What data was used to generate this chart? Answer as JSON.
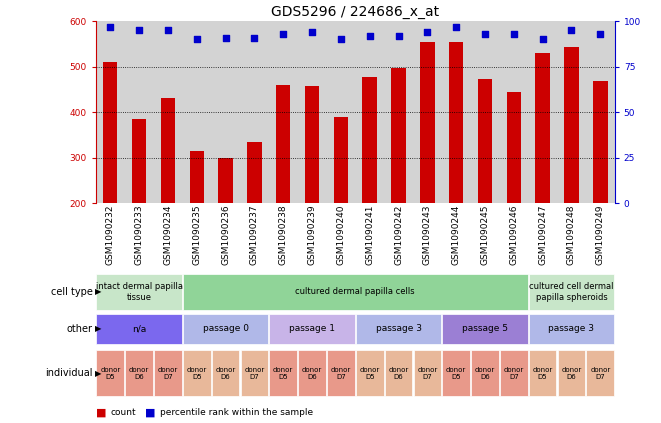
{
  "title": "GDS5296 / 224686_x_at",
  "samples": [
    "GSM1090232",
    "GSM1090233",
    "GSM1090234",
    "GSM1090235",
    "GSM1090236",
    "GSM1090237",
    "GSM1090238",
    "GSM1090239",
    "GSM1090240",
    "GSM1090241",
    "GSM1090242",
    "GSM1090243",
    "GSM1090244",
    "GSM1090245",
    "GSM1090246",
    "GSM1090247",
    "GSM1090248",
    "GSM1090249"
  ],
  "counts": [
    510,
    385,
    432,
    315,
    300,
    335,
    460,
    458,
    390,
    478,
    497,
    554,
    555,
    472,
    445,
    530,
    543,
    468
  ],
  "percentiles": [
    97,
    95,
    95,
    90,
    91,
    91,
    93,
    94,
    90,
    92,
    92,
    94,
    97,
    93,
    93,
    90,
    95,
    93
  ],
  "ymin": 200,
  "ymax": 600,
  "yticks": [
    200,
    300,
    400,
    500,
    600
  ],
  "y2ticks": [
    0,
    25,
    50,
    75,
    100
  ],
  "bar_color": "#cc0000",
  "dot_color": "#0000cc",
  "plot_bg": "#ffffff",
  "col_bg": "#d3d3d3",
  "cell_type_groups": [
    {
      "label": "intact dermal papilla\ntissue",
      "start": 0,
      "end": 3,
      "color": "#c8e6c9"
    },
    {
      "label": "cultured dermal papilla cells",
      "start": 3,
      "end": 15,
      "color": "#90d498"
    },
    {
      "label": "cultured cell dermal\npapilla spheroids",
      "start": 15,
      "end": 18,
      "color": "#c8e6c9"
    }
  ],
  "other_groups": [
    {
      "label": "n/a",
      "start": 0,
      "end": 3,
      "color": "#7b68ee"
    },
    {
      "label": "passage 0",
      "start": 3,
      "end": 6,
      "color": "#b0b8e8"
    },
    {
      "label": "passage 1",
      "start": 6,
      "end": 9,
      "color": "#c8b4e8"
    },
    {
      "label": "passage 3",
      "start": 9,
      "end": 12,
      "color": "#b0b8e8"
    },
    {
      "label": "passage 5",
      "start": 12,
      "end": 15,
      "color": "#9b7fd4"
    },
    {
      "label": "passage 3",
      "start": 15,
      "end": 18,
      "color": "#b0b8e8"
    }
  ],
  "individual_colors_d5": "#e8998a",
  "individual_colors_d6": "#e8998a",
  "individual_colors_d7": "#e8998a",
  "individual_groups": [
    {
      "label": "donor\nD5",
      "idx": 0,
      "color": "#e8998a"
    },
    {
      "label": "donor\nD6",
      "idx": 1,
      "color": "#e8998a"
    },
    {
      "label": "donor\nD7",
      "idx": 2,
      "color": "#e8998a"
    },
    {
      "label": "donor\nD5",
      "idx": 3,
      "color": "#e8b89a"
    },
    {
      "label": "donor\nD6",
      "idx": 4,
      "color": "#e8b89a"
    },
    {
      "label": "donor\nD7",
      "idx": 5,
      "color": "#e8b89a"
    },
    {
      "label": "donor\nD5",
      "idx": 6,
      "color": "#e8998a"
    },
    {
      "label": "donor\nD6",
      "idx": 7,
      "color": "#e8998a"
    },
    {
      "label": "donor\nD7",
      "idx": 8,
      "color": "#e8998a"
    },
    {
      "label": "donor\nD5",
      "idx": 9,
      "color": "#e8b89a"
    },
    {
      "label": "donor\nD6",
      "idx": 10,
      "color": "#e8b89a"
    },
    {
      "label": "donor\nD7",
      "idx": 11,
      "color": "#e8b89a"
    },
    {
      "label": "donor\nD5",
      "idx": 12,
      "color": "#e8998a"
    },
    {
      "label": "donor\nD6",
      "idx": 13,
      "color": "#e8998a"
    },
    {
      "label": "donor\nD7",
      "idx": 14,
      "color": "#e8998a"
    },
    {
      "label": "donor\nD5",
      "idx": 15,
      "color": "#e8b89a"
    },
    {
      "label": "donor\nD6",
      "idx": 16,
      "color": "#e8b89a"
    },
    {
      "label": "donor\nD7",
      "idx": 17,
      "color": "#e8b89a"
    }
  ],
  "row_labels": [
    "cell type",
    "other",
    "individual"
  ],
  "legend_count_color": "#cc0000",
  "legend_dot_color": "#0000cc",
  "title_fontsize": 10,
  "tick_fontsize": 6.5,
  "annotation_fontsize": 7,
  "table_fontsize": 6.5,
  "ind_fontsize": 5.0
}
